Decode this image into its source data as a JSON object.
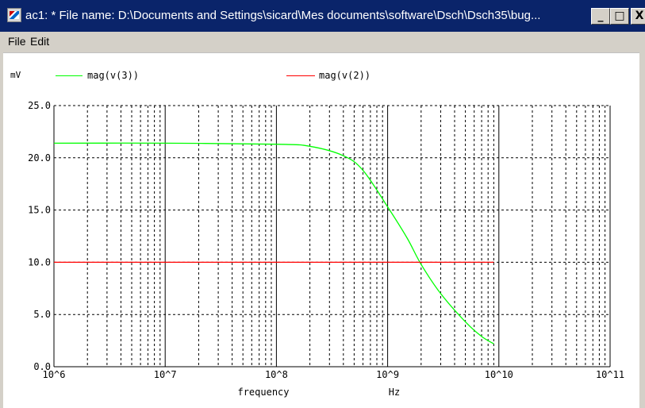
{
  "window": {
    "title": "ac1: * File name: D:\\Documents and Settings\\sicard\\Mes documents\\software\\Dsch\\Dsch35\\bug...",
    "minimize_glyph": "_",
    "maximize_glyph": "□",
    "close_glyph": "X"
  },
  "menu": {
    "file": "File",
    "edit": "Edit"
  },
  "chart_data": {
    "type": "line",
    "xscale": "log",
    "xlim": [
      1000000,
      100000000000
    ],
    "ylim": [
      0,
      25
    ],
    "grid": true,
    "ylabel": "mV",
    "xlabel": "frequency",
    "xunit": "Hz",
    "yticks": [
      "0.0",
      "5.0",
      "10.0",
      "15.0",
      "20.0",
      "25.0"
    ],
    "xticks": [
      "10^6",
      "10^7",
      "10^8",
      "10^9",
      "10^10",
      "10^11"
    ],
    "legend": "top",
    "series": [
      {
        "name": "mag(v(3))",
        "color": "#00ff00",
        "x": [
          1000000,
          10000000,
          100000000,
          200000000,
          400000000,
          600000000,
          1000000000,
          1500000000,
          2000000000,
          3000000000,
          5000000000,
          7000000000,
          9000000000
        ],
        "y": [
          21.4,
          21.4,
          21.3,
          21.1,
          20.2,
          18.8,
          15.3,
          12.3,
          9.8,
          7.0,
          4.3,
          2.9,
          2.2
        ]
      },
      {
        "name": "mag(v(2))",
        "color": "#ff0000",
        "x": [
          1000000,
          9000000000
        ],
        "y": [
          10.0,
          10.0
        ]
      }
    ]
  }
}
